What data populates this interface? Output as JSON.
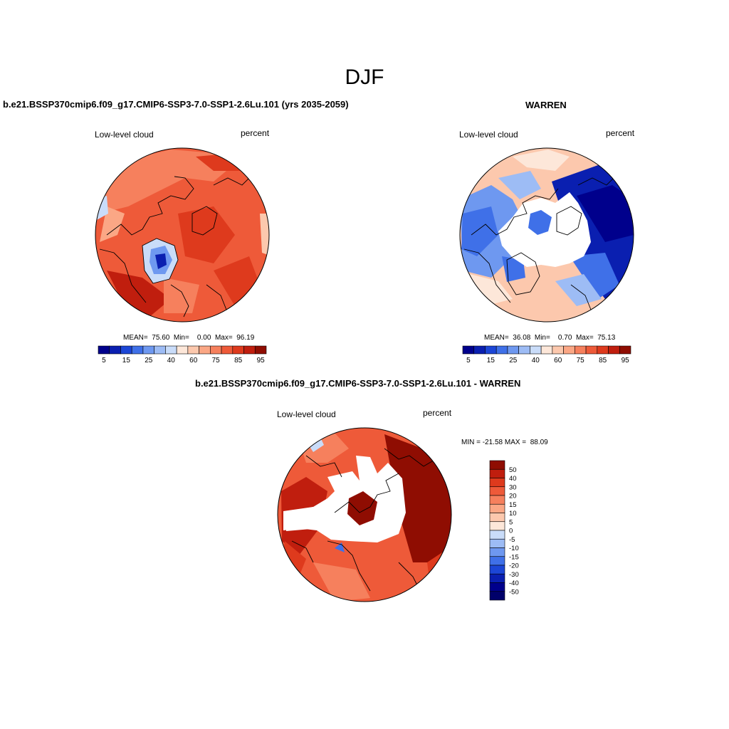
{
  "main_title": "DJF",
  "panels": [
    {
      "title": "b.e21.BSSP370cmip6.f09_g17.CMIP6-SSP3-7.0-SSP1-2.6Lu.101 (yrs 2035-2059)",
      "left_label": "Low-level cloud",
      "right_label": "percent",
      "stats": "MEAN=  75.60  Min=    0.00  Max=  96.19"
    },
    {
      "title": "WARREN",
      "left_label": "Low-level cloud",
      "right_label": "percent",
      "stats": "MEAN=  36.08  Min=    0.70  Max=  75.13"
    },
    {
      "title": "b.e21.BSSP370cmip6.f09_g17.CMIP6-SSP3-7.0-SSP1-2.6Lu.101 - WARREN",
      "left_label": "Low-level cloud",
      "right_label": "percent",
      "stats": "MIN = -21.58 MAX =  88.09"
    }
  ],
  "colorbar_abs": {
    "ticks": [
      "5",
      "15",
      "25",
      "40",
      "60",
      "75",
      "85",
      "95"
    ],
    "colors": [
      "#00008c",
      "#0a1fb0",
      "#1c46d6",
      "#3f70e8",
      "#6e98f0",
      "#9dbcf5",
      "#c9dcf9",
      "#fde7d9",
      "#fcc8ad",
      "#fba785",
      "#f6805d",
      "#ee5a39",
      "#de3a1d",
      "#c01e0e",
      "#8f0d02"
    ]
  },
  "colorbar_diff": {
    "labels": [
      "50",
      "40",
      "30",
      "20",
      "15",
      "10",
      "5",
      "0",
      "-5",
      "-10",
      "-15",
      "-20",
      "-30",
      "-40",
      "-50"
    ],
    "colors": [
      "#8f0d02",
      "#c01e0e",
      "#de3a1d",
      "#ee5a39",
      "#f6805d",
      "#fba785",
      "#fcc8ad",
      "#fde7d9",
      "#c9dcf9",
      "#9dbcf5",
      "#6e98f0",
      "#3f70e8",
      "#1c46d6",
      "#0a1fb0",
      "#00008c",
      "#00006a"
    ]
  }
}
